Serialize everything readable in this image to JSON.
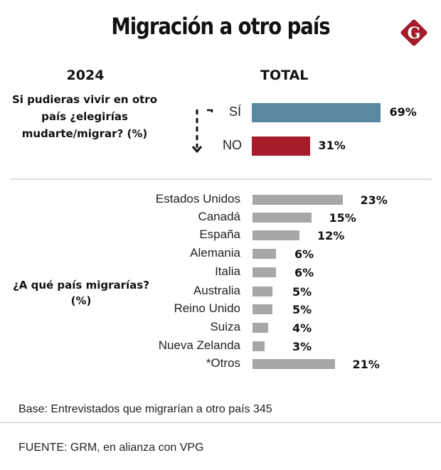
{
  "header": {
    "title": "Migración a otro país",
    "logo_letter": "G",
    "brand_color": "#a51c2a"
  },
  "chart_data": [
    {
      "type": "bar",
      "orientation": "horizontal",
      "title": "Si pudieras vivir en otro país ¿elegirías mudarte/migrar? (%)",
      "year_label": "2024",
      "column_header": "TOTAL",
      "categories": [
        "SÍ",
        "NO"
      ],
      "values": [
        69,
        31
      ],
      "value_labels": [
        "69%",
        "31%"
      ],
      "colors": [
        "#5a87a1",
        "#a51c2a"
      ],
      "unit": "%"
    },
    {
      "type": "bar",
      "orientation": "horizontal",
      "title": "¿A qué país migrarías? (%)",
      "categories": [
        "Estados Unidos",
        "Canadá",
        "España",
        "Alemania",
        "Italia",
        "Australia",
        "Reino Unido",
        "Suiza",
        "Nueva Zelanda",
        "*Otros"
      ],
      "values": [
        23,
        15,
        12,
        6,
        6,
        5,
        5,
        4,
        3,
        21
      ],
      "value_labels": [
        "23%",
        "15%",
        "12%",
        "6%",
        "6%",
        "5%",
        "5%",
        "4%",
        "3%",
        "21%"
      ],
      "colors": [
        "#a7a7a9"
      ],
      "unit": "%"
    }
  ],
  "footer": {
    "base": "Base: Entrevistados que migrarían a otro país 345",
    "source": "FUENTE: GRM, en alianza con VPG"
  }
}
